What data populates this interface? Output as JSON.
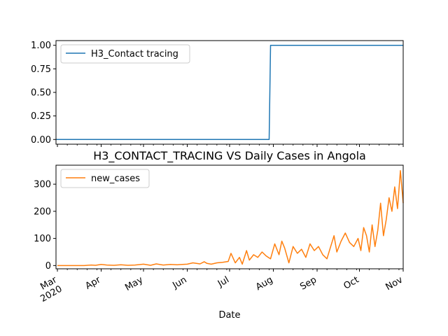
{
  "chart_data": [
    {
      "type": "line",
      "title": "",
      "xlabel": "",
      "ylabel": "",
      "xlim": [
        "2020-02-29",
        "2020-11-01"
      ],
      "ylim": [
        -0.05,
        1.05
      ],
      "yticks": [
        0.0,
        0.25,
        0.5,
        0.75,
        1.0
      ],
      "ytick_labels": [
        "0.00",
        "0.25",
        "0.50",
        "0.75",
        "1.00"
      ],
      "grid": false,
      "legend_position": "top-left",
      "series": [
        {
          "name": "H3_Contact tracing",
          "color": "#1f77b4",
          "x": [
            "2020-02-29",
            "2020-07-29",
            "2020-07-30",
            "2020-11-01"
          ],
          "values": [
            0,
            0,
            1,
            1
          ]
        }
      ]
    },
    {
      "type": "line",
      "title": "H3_CONTACT_TRACING VS Daily Cases in Angola",
      "xlabel": "Date",
      "ylabel": "",
      "xlim": [
        "2020-02-29",
        "2020-11-01"
      ],
      "ylim": [
        -12,
        370
      ],
      "yticks": [
        0,
        100,
        200,
        300
      ],
      "ytick_labels": [
        "0",
        "100",
        "200",
        "300"
      ],
      "xticks": [
        "2020-03-01",
        "2020-04-01",
        "2020-05-01",
        "2020-06-01",
        "2020-07-01",
        "2020-08-01",
        "2020-09-01",
        "2020-10-01",
        "2020-11-01"
      ],
      "xtick_labels": [
        "Mar\n2020",
        "Apr",
        "May",
        "Jun",
        "Jul",
        "Aug",
        "Sep",
        "Oct",
        "Nov"
      ],
      "grid": false,
      "legend_position": "top-left",
      "series": [
        {
          "name": "new_cases",
          "color": "#ff7f0e",
          "x": [
            "2020-03-01",
            "2020-03-10",
            "2020-03-20",
            "2020-03-25",
            "2020-03-28",
            "2020-04-01",
            "2020-04-05",
            "2020-04-10",
            "2020-04-15",
            "2020-04-20",
            "2020-04-25",
            "2020-05-01",
            "2020-05-06",
            "2020-05-10",
            "2020-05-15",
            "2020-05-20",
            "2020-05-25",
            "2020-06-01",
            "2020-06-05",
            "2020-06-10",
            "2020-06-13",
            "2020-06-15",
            "2020-06-18",
            "2020-06-22",
            "2020-06-26",
            "2020-06-30",
            "2020-07-02",
            "2020-07-05",
            "2020-07-08",
            "2020-07-10",
            "2020-07-13",
            "2020-07-15",
            "2020-07-18",
            "2020-07-21",
            "2020-07-24",
            "2020-07-27",
            "2020-07-30",
            "2020-08-02",
            "2020-08-05",
            "2020-08-07",
            "2020-08-09",
            "2020-08-12",
            "2020-08-15",
            "2020-08-18",
            "2020-08-21",
            "2020-08-24",
            "2020-08-27",
            "2020-08-30",
            "2020-09-02",
            "2020-09-05",
            "2020-09-08",
            "2020-09-10",
            "2020-09-13",
            "2020-09-15",
            "2020-09-18",
            "2020-09-21",
            "2020-09-24",
            "2020-09-27",
            "2020-09-30",
            "2020-10-02",
            "2020-10-04",
            "2020-10-06",
            "2020-10-08",
            "2020-10-10",
            "2020-10-12",
            "2020-10-14",
            "2020-10-16",
            "2020-10-18",
            "2020-10-20",
            "2020-10-22",
            "2020-10-24",
            "2020-10-26",
            "2020-10-28",
            "2020-10-30",
            "2020-11-01"
          ],
          "values": [
            0,
            0,
            0,
            2,
            1,
            4,
            2,
            1,
            3,
            1,
            2,
            5,
            1,
            6,
            2,
            4,
            3,
            5,
            10,
            6,
            14,
            8,
            5,
            10,
            12,
            15,
            45,
            10,
            30,
            5,
            55,
            20,
            40,
            30,
            50,
            35,
            25,
            80,
            40,
            90,
            65,
            10,
            70,
            45,
            60,
            30,
            80,
            55,
            70,
            40,
            25,
            60,
            110,
            50,
            90,
            120,
            85,
            70,
            100,
            55,
            140,
            110,
            50,
            150,
            70,
            130,
            230,
            110,
            170,
            250,
            200,
            290,
            210,
            350,
            230
          ]
        }
      ]
    }
  ]
}
